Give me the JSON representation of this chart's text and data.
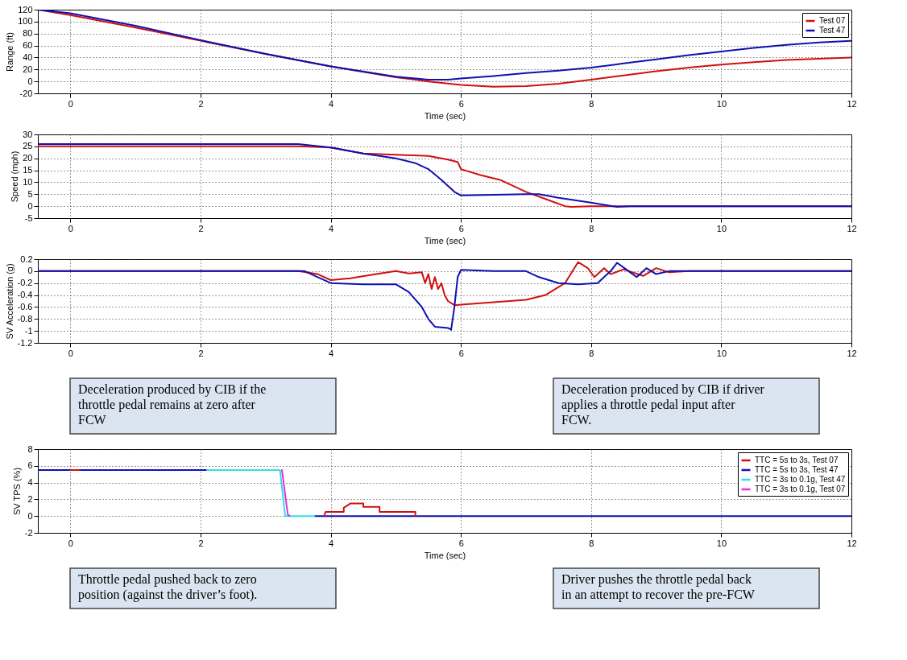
{
  "chart_data": [
    {
      "type": "line",
      "xlabel": "Time (sec)",
      "ylabel": "Range (ft)",
      "xlim": [
        -0.5,
        12
      ],
      "xticks": [
        0,
        2,
        4,
        6,
        8,
        10,
        12
      ],
      "ylim": [
        -20,
        120
      ],
      "yticks": [
        -20,
        0,
        20,
        40,
        60,
        80,
        100,
        120
      ],
      "grid": true,
      "legend": "top right",
      "series": [
        {
          "name": "Test 07",
          "color": "#d01010",
          "x": [
            -0.5,
            0,
            1,
            2,
            3,
            4,
            5,
            5.5,
            6,
            6.5,
            7,
            7.5,
            8,
            8.5,
            9,
            9.5,
            10,
            10.5,
            11,
            11.5,
            12
          ],
          "values": [
            120,
            111,
            90,
            68,
            46,
            25,
            7,
            0,
            -6,
            -9,
            -8,
            -4,
            3,
            10,
            17,
            23,
            28,
            32,
            36,
            38,
            40
          ]
        },
        {
          "name": "Test 47",
          "color": "#1010b0",
          "x": [
            -0.5,
            0,
            1,
            2,
            3,
            4,
            5,
            5.5,
            5.8,
            6,
            6.5,
            7,
            7.5,
            8,
            8.5,
            9,
            9.5,
            10,
            10.5,
            11,
            11.5,
            12
          ],
          "values": [
            120,
            114,
            93,
            69,
            46,
            25,
            8,
            3,
            3,
            5,
            9,
            14,
            18,
            23,
            30,
            37,
            44,
            50,
            56,
            61,
            65,
            68
          ]
        }
      ]
    },
    {
      "type": "line",
      "xlabel": "Time (sec)",
      "ylabel": "Speed (mph)",
      "xlim": [
        -0.5,
        12
      ],
      "xticks": [
        0,
        2,
        4,
        6,
        8,
        10,
        12
      ],
      "ylim": [
        -5,
        30
      ],
      "yticks": [
        -5,
        0,
        5,
        10,
        15,
        20,
        25,
        30
      ],
      "grid": true,
      "series": [
        {
          "color": "#d01010",
          "x": [
            -0.5,
            3.5,
            4,
            4.5,
            5,
            5.5,
            5.8,
            5.95,
            6.0,
            6.3,
            6.6,
            7,
            7.3,
            7.6,
            7.7,
            8,
            12
          ],
          "values": [
            25,
            25,
            24.5,
            22,
            21.5,
            21,
            19.5,
            18.5,
            15.5,
            13,
            11,
            6,
            3,
            0,
            -0.3,
            0,
            0
          ]
        },
        {
          "color": "#1010b0",
          "x": [
            -0.5,
            3.5,
            4,
            4.5,
            5,
            5.3,
            5.5,
            5.7,
            5.9,
            6.0,
            7.0,
            7.2,
            7.5,
            8,
            8.4,
            8.6,
            12
          ],
          "values": [
            26,
            26,
            24.5,
            22,
            20,
            18,
            15.5,
            11,
            6,
            4.5,
            5,
            5,
            3.5,
            1.5,
            -0.3,
            0,
            0
          ]
        }
      ]
    },
    {
      "type": "line",
      "ylabel": "SV Acceleration (g)",
      "xlim": [
        -0.5,
        12
      ],
      "xticks": [
        0,
        2,
        4,
        6,
        8,
        10,
        12
      ],
      "ylim": [
        -1.2,
        0.2
      ],
      "yticks": [
        -1.2,
        -1,
        -0.8,
        -0.6,
        -0.4,
        -0.2,
        0,
        0.2
      ],
      "grid": true,
      "annotations": [
        "Deceleration produced by CIB if the throttle pedal remains at zero after FCW",
        "Deceleration produced by CIB if driver applies a throttle pedal input after FCW."
      ],
      "series": [
        {
          "color": "#d01010",
          "x": [
            -0.5,
            3.5,
            3.8,
            4.0,
            4.3,
            4.7,
            5.0,
            5.2,
            5.4,
            5.45,
            5.5,
            5.55,
            5.6,
            5.65,
            5.7,
            5.75,
            5.8,
            5.9,
            6.0,
            6.5,
            7.0,
            7.3,
            7.6,
            7.8,
            7.95,
            8.05,
            8.2,
            8.3,
            8.5,
            8.8,
            9.0,
            9.2,
            9.5,
            12
          ],
          "values": [
            0,
            0,
            -0.05,
            -0.15,
            -0.12,
            -0.05,
            0,
            -0.04,
            -0.02,
            -0.2,
            -0.05,
            -0.3,
            -0.1,
            -0.3,
            -0.2,
            -0.4,
            -0.5,
            -0.57,
            -0.56,
            -0.52,
            -0.48,
            -0.4,
            -0.2,
            0.15,
            0.05,
            -0.1,
            0.05,
            -0.05,
            0.03,
            -0.08,
            0.05,
            -0.02,
            0,
            0
          ]
        },
        {
          "color": "#1010b0",
          "x": [
            -0.5,
            3.6,
            3.8,
            4.0,
            4.5,
            5.0,
            5.2,
            5.4,
            5.5,
            5.6,
            5.8,
            5.85,
            5.9,
            5.95,
            6.0,
            6.5,
            7.0,
            7.2,
            7.5,
            7.8,
            8.1,
            8.3,
            8.4,
            8.55,
            8.7,
            8.85,
            9.0,
            9.2,
            12
          ],
          "values": [
            0,
            0,
            -0.1,
            -0.2,
            -0.22,
            -0.22,
            -0.35,
            -0.6,
            -0.8,
            -0.93,
            -0.95,
            -0.98,
            -0.6,
            -0.1,
            0.02,
            0,
            0,
            -0.1,
            -0.2,
            -0.22,
            -0.2,
            0,
            0.14,
            0.02,
            -0.1,
            0.05,
            -0.05,
            0,
            0
          ]
        }
      ]
    },
    {
      "type": "line",
      "xlabel": "Time (sec)",
      "ylabel": "SV TPS (%)",
      "xlim": [
        -0.5,
        12
      ],
      "xticks": [
        0,
        2,
        4,
        6,
        8,
        10,
        12
      ],
      "ylim": [
        -2,
        8
      ],
      "yticks": [
        -2,
        0,
        2,
        4,
        6,
        8
      ],
      "grid": true,
      "legend": "top right",
      "annotations": [
        "Throttle pedal pushed back to zero position (against the driver’s foot).",
        "Driver pushes the throttle pedal back in an attempt to recover the pre-FCW"
      ],
      "series": [
        {
          "color": "#1010b0",
          "x": [
            -0.5,
            0,
            null,
            3.75,
            12
          ],
          "values": [
            5.5,
            5.5,
            null,
            0,
            0
          ]
        },
        {
          "name": "TTC = 5s to 3s, Test 07",
          "color": "#d01010",
          "x": [
            0,
            0.15,
            1,
            3.9,
            3.92,
            4.2,
            4.2,
            4.3,
            4.5,
            4.5,
            4.75,
            4.75,
            5.3,
            5.3
          ],
          "values": [
            5.5,
            5.5,
            null,
            0,
            0.5,
            0.5,
            1,
            1.5,
            1.5,
            1.1,
            1.1,
            0.5,
            0.5,
            0
          ]
        },
        {
          "name": "TTC = 5s to 3s, Test 47",
          "color": "#1010c8",
          "x": [
            0.15,
            2.1
          ],
          "values": [
            5.5,
            5.5
          ]
        },
        {
          "name": "TTC = 3s to 0.1g, Test 47",
          "color": "#30e0e0",
          "x": [
            2.1,
            3.22,
            3.3,
            3.75
          ],
          "values": [
            5.5,
            5.5,
            0,
            0
          ]
        },
        {
          "name": "TTC = 3s to 0.1g, Test 07",
          "color": "#e030e0",
          "x": [
            3.25,
            3.34,
            3.37
          ],
          "values": [
            5.5,
            0.2,
            0
          ]
        }
      ]
    }
  ]
}
